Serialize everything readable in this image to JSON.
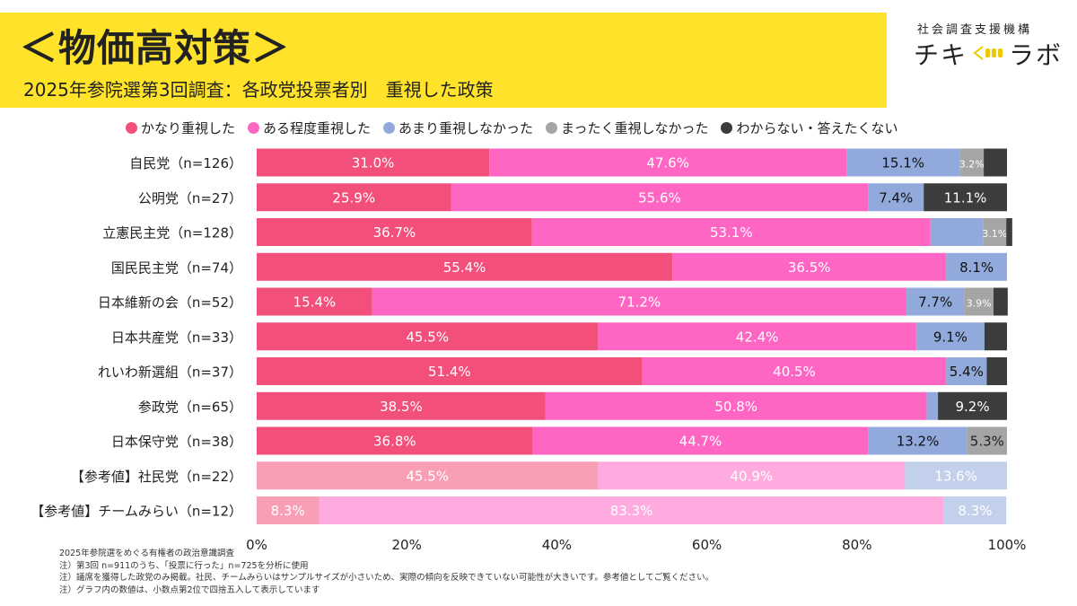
{
  "header": {
    "title": "＜物価高対策＞",
    "subtitle": "2025年参院選第3回調査：各政党投票者別　重視した政策"
  },
  "brand": {
    "org": "社会調査支援機構",
    "name_left": "チキ",
    "name_right": "ラボ",
    "logo_icon": "signal-wave-icon"
  },
  "chart_data": {
    "type": "bar",
    "orientation": "horizontal",
    "stacked": true,
    "categories": [
      "自民党（n=126）",
      "公明党（n=27）",
      "立憲民主党（n=128）",
      "国民民主党（n=74）",
      "日本維新の会（n=52）",
      "日本共産党（n=33）",
      "れいわ新選組（n=37）",
      "参政党（n=65）",
      "日本保守党（n=38）",
      "【参考値】社民党（n=22）",
      "【参考値】チームみらい（n=12）"
    ],
    "reference_rows": [
      9,
      10
    ],
    "series": [
      {
        "name": "かなり重視した",
        "color": "#f2507a",
        "values": [
          31.0,
          25.9,
          36.7,
          55.4,
          15.4,
          45.5,
          51.4,
          38.5,
          36.8,
          45.5,
          8.3
        ],
        "labels": [
          "31.0%",
          "25.9%",
          "36.7%",
          "55.4%",
          "15.4%",
          "45.5%",
          "51.4%",
          "38.5%",
          "36.8%",
          "45.5%",
          "8.3%"
        ]
      },
      {
        "name": "ある程度重視した",
        "color": "#ff66c4",
        "values": [
          47.6,
          55.6,
          53.1,
          36.5,
          71.2,
          42.4,
          40.5,
          50.8,
          44.7,
          40.9,
          83.3
        ],
        "labels": [
          "47.6%",
          "55.6%",
          "53.1%",
          "36.5%",
          "71.2%",
          "42.4%",
          "40.5%",
          "50.8%",
          "44.7%",
          "40.9%",
          "83.3%"
        ]
      },
      {
        "name": "あまり重視しなかった",
        "color": "#92a9dc",
        "values": [
          15.1,
          7.4,
          7.0,
          8.1,
          7.7,
          9.1,
          5.4,
          1.5,
          13.2,
          13.6,
          8.3
        ],
        "labels": [
          "15.1%",
          "7.4%",
          "",
          "8.1%",
          "7.7%",
          "9.1%",
          "5.4%",
          "",
          "13.2%",
          "13.6%",
          "8.3%"
        ]
      },
      {
        "name": "まったく重視しなかった",
        "color": "#a5a5a5",
        "values": [
          3.2,
          0,
          3.1,
          0,
          3.9,
          0,
          0,
          0,
          5.3,
          0,
          0
        ],
        "labels": [
          "3.2%",
          "",
          "3.1%",
          "",
          "3.9%",
          "",
          "",
          "",
          "5.3%",
          "",
          ""
        ]
      },
      {
        "name": "わからない・答えたくない",
        "color": "#3c3c3c",
        "values": [
          3.1,
          11.1,
          0.8,
          0,
          1.9,
          3.0,
          2.7,
          9.2,
          0,
          0,
          0
        ],
        "labels": [
          "",
          "11.1%",
          "",
          "",
          "",
          "",
          "",
          "9.2%",
          "",
          "",
          ""
        ]
      }
    ],
    "xlim": [
      0,
      100
    ],
    "x_ticks": [
      "0%",
      "20%",
      "40%",
      "60%",
      "80%",
      "100%"
    ],
    "grid": false,
    "legend_position": "top"
  },
  "notes": [
    "2025年参院選をめぐる有権者の政治意識調査",
    "注）第3回 n=911のうち、「投票に行った」n=725を分析に使用",
    "注）議席を獲得した政党のみ掲載。社民、チームみらいはサンプルサイズが小さいため、実際の傾向を反映できていない可能性が大きいです。参考値としてご覧ください。",
    "注）グラフ内の数値は、小数点第2位で四捨五入して表示しています"
  ]
}
